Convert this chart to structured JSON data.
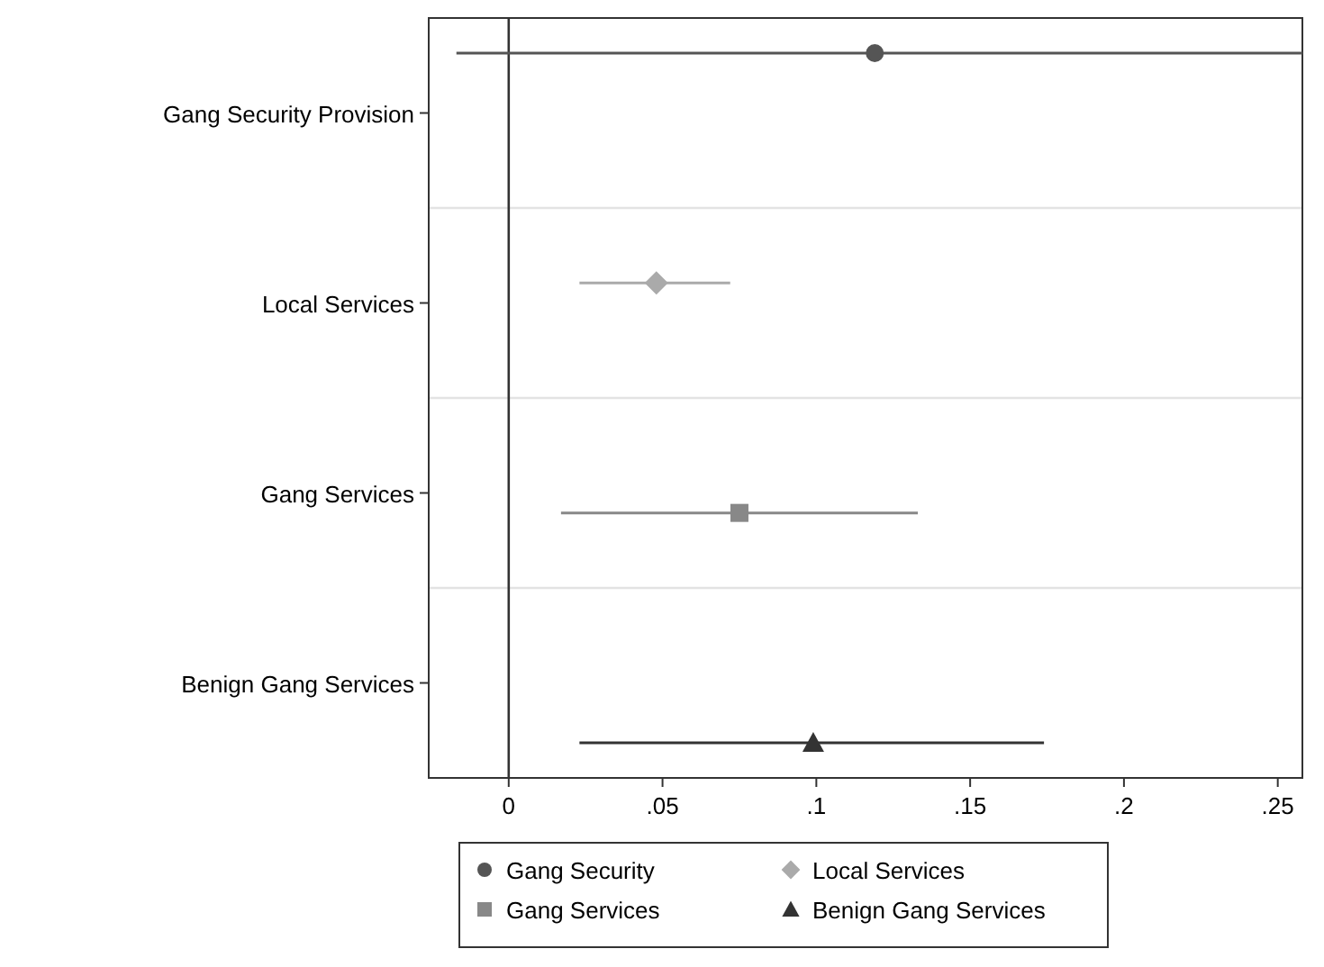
{
  "chart_data": {
    "type": "scatter",
    "orientation": "horizontal",
    "categories": [
      "Gang Security Provision",
      "Local Services",
      "Gang Services",
      "Benign Gang Services"
    ],
    "series": [
      {
        "name": "Gang Security",
        "color": "#555555",
        "marker": "circle",
        "values": [
          0.119,
          null,
          null,
          null
        ],
        "errors": [
          [
            -0.017,
            0.258
          ],
          null,
          null,
          null
        ]
      },
      {
        "name": "Local Services",
        "color": "#aaaaaa",
        "marker": "diamond",
        "values": [
          null,
          0.048,
          null,
          null
        ],
        "errors": [
          null,
          [
            0.023,
            0.072
          ],
          null,
          null
        ]
      },
      {
        "name": "Gang Services",
        "color": "#888888",
        "marker": "square",
        "values": [
          null,
          null,
          0.075,
          null
        ],
        "errors": [
          null,
          null,
          [
            0.017,
            0.133
          ],
          null
        ]
      },
      {
        "name": "Benign Gang Services",
        "color": "#333333",
        "marker": "triangle",
        "values": [
          null,
          null,
          null,
          0.099
        ],
        "errors": [
          null,
          null,
          null,
          [
            0.023,
            0.174
          ]
        ]
      }
    ],
    "xlim": [
      -0.026,
      0.258
    ],
    "xticks": [
      0,
      {
        "value": 0.05,
        "label": ".05"
      },
      {
        "value": 0.1,
        "label": ".1"
      },
      {
        "value": 0.15,
        "label": ".15"
      },
      {
        "value": 0.2,
        "label": ".2"
      },
      {
        "value": 0.25,
        "label": ".25"
      }
    ],
    "ref_lines": [
      {
        "axis": "x",
        "value": 0,
        "color": "#333333"
      }
    ],
    "grid": "y",
    "legend": "bottom"
  }
}
